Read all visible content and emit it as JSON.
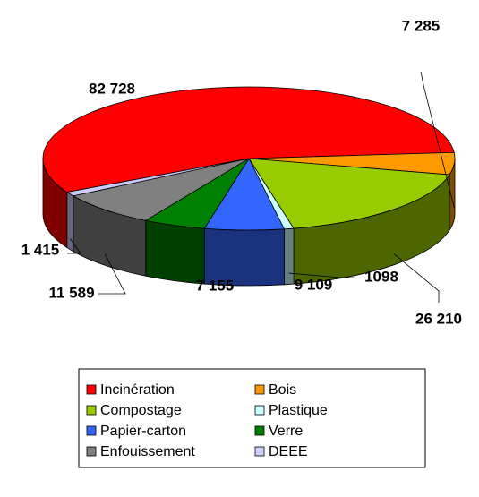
{
  "chart_data": {
    "type": "pie",
    "categories": [
      "Incinération",
      "Bois",
      "Compostage",
      "Plastique",
      "Papier-carton",
      "Verre",
      "Enfouissement",
      "DEEE"
    ],
    "values": [
      82728,
      7285,
      26210,
      1098,
      9109,
      7155,
      11589,
      1415
    ],
    "value_labels": [
      "82 728",
      "7 285",
      "26 210",
      "1098",
      "9 109",
      "7 155",
      "11 589",
      "1 415"
    ],
    "colors": [
      "#ff0000",
      "#ff9900",
      "#99cc00",
      "#ccffff",
      "#3366ff",
      "#008000",
      "#808080",
      "#ccccff"
    ],
    "legend": "bottom"
  }
}
